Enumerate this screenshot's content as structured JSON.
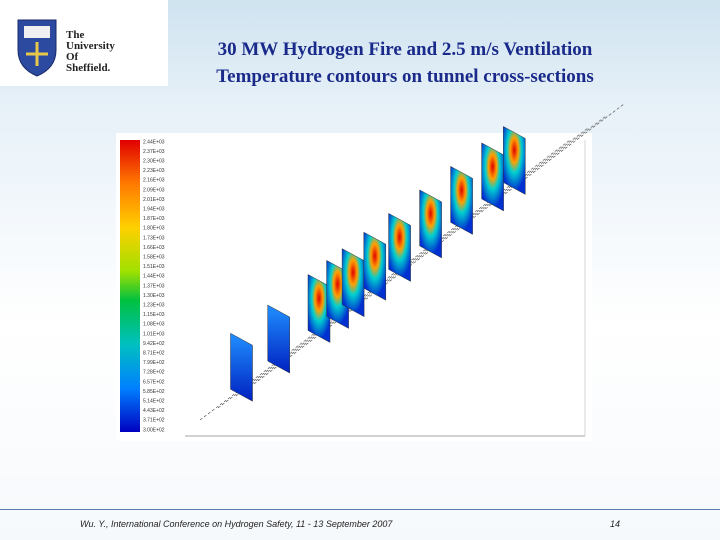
{
  "logo": {
    "lines": [
      "The",
      "University",
      "Of",
      "Sheffield."
    ]
  },
  "header": {
    "title_lines": [
      "30 MW Hydrogen Fire and 2.5 m/s Ventilation",
      "Temperature contours on tunnel cross-sections"
    ]
  },
  "figure": {
    "colorbar_labels": [
      "2.44E+03",
      "2.37E+03",
      "2.30E+03",
      "2.23E+03",
      "2.16E+03",
      "2.09E+03",
      "2.01E+03",
      "1.94E+03",
      "1.87E+03",
      "1.80E+03",
      "1.73E+03",
      "1.66E+03",
      "1.58E+03",
      "1.51E+03",
      "1.44E+03",
      "1.37E+03",
      "1.30E+03",
      "1.23E+03",
      "1.15E+03",
      "1.08E+03",
      "1.01E+03",
      "9.42E+02",
      "8.71E+02",
      "7.99E+02",
      "7.28E+02",
      "6.57E+02",
      "5.85E+02",
      "5.14E+02",
      "4.43E+02",
      "3.71E+02",
      "3.00E+02"
    ]
  },
  "footer": {
    "citation": "Wu. Y., International Conference on Hydrogen Safety, 11 - 13 September 2007",
    "page_number": "14"
  }
}
